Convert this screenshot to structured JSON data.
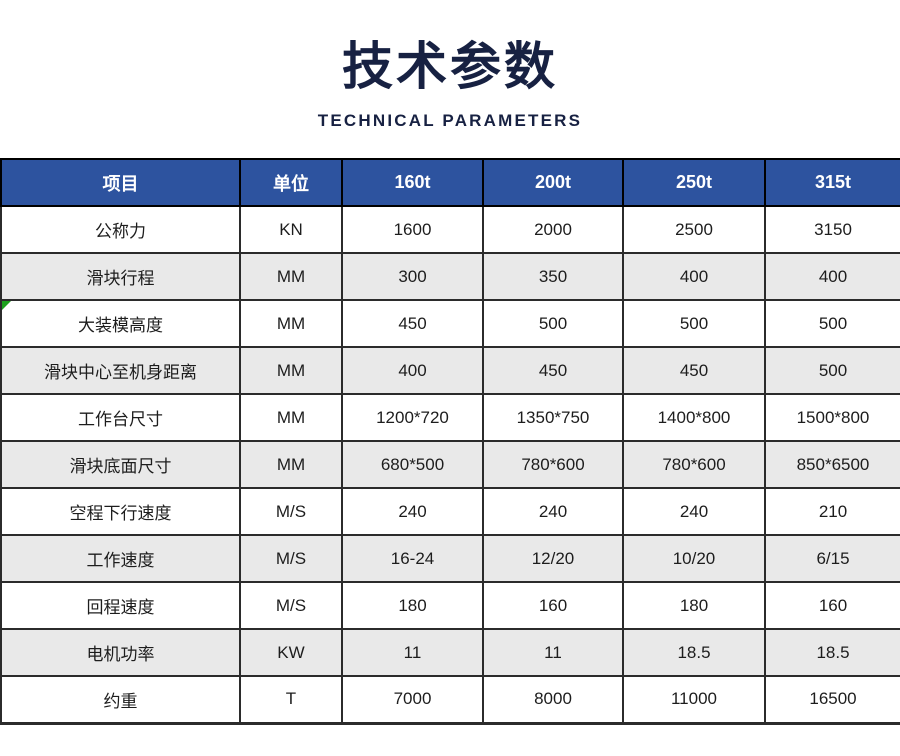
{
  "header": {
    "title": "技术参数",
    "subtitle": "TECHNICAL PARAMETERS",
    "title_color": "#172142"
  },
  "table": {
    "header_bg": "#2d539f",
    "header_text_color": "#ffffff",
    "alt_row_bg": "#e9e9e9",
    "border_color": "#2b2b2b",
    "note_marker_color": "#1ca01c",
    "columns": [
      "项目",
      "单位",
      "160t",
      "200t",
      "250t",
      "315t"
    ],
    "rows": [
      {
        "item": "公称力",
        "unit": "KN",
        "values": [
          "1600",
          "2000",
          "2500",
          "3150"
        ],
        "alt": false,
        "note_marker": false
      },
      {
        "item": "滑块行程",
        "unit": "MM",
        "values": [
          "300",
          "350",
          "400",
          "400"
        ],
        "alt": true,
        "note_marker": false
      },
      {
        "item": "大装模高度",
        "unit": "MM",
        "values": [
          "450",
          "500",
          "500",
          "500"
        ],
        "alt": false,
        "note_marker": true
      },
      {
        "item": "滑块中心至机身距离",
        "unit": "MM",
        "values": [
          "400",
          "450",
          "450",
          "500"
        ],
        "alt": true,
        "note_marker": false
      },
      {
        "item": "工作台尺寸",
        "unit": "MM",
        "values": [
          "1200*720",
          "1350*750",
          "1400*800",
          "1500*800"
        ],
        "alt": false,
        "note_marker": false
      },
      {
        "item": "滑块底面尺寸",
        "unit": "MM",
        "values": [
          "680*500",
          "780*600",
          "780*600",
          "850*6500"
        ],
        "alt": true,
        "note_marker": false
      },
      {
        "item": "空程下行速度",
        "unit": "M/S",
        "values": [
          "240",
          "240",
          "240",
          "210"
        ],
        "alt": false,
        "note_marker": false
      },
      {
        "item": "工作速度",
        "unit": "M/S",
        "values": [
          "16-24",
          "12/20",
          "10/20",
          "6/15"
        ],
        "alt": true,
        "note_marker": false
      },
      {
        "item": "回程速度",
        "unit": "M/S",
        "values": [
          "180",
          "160",
          "180",
          "160"
        ],
        "alt": false,
        "note_marker": false
      },
      {
        "item": "电机功率",
        "unit": "KW",
        "values": [
          "11",
          "11",
          "18.5",
          "18.5"
        ],
        "alt": true,
        "note_marker": false
      },
      {
        "item": "约重",
        "unit": "T",
        "values": [
          "7000",
          "8000",
          "11000",
          "16500"
        ],
        "alt": false,
        "note_marker": false
      }
    ]
  }
}
